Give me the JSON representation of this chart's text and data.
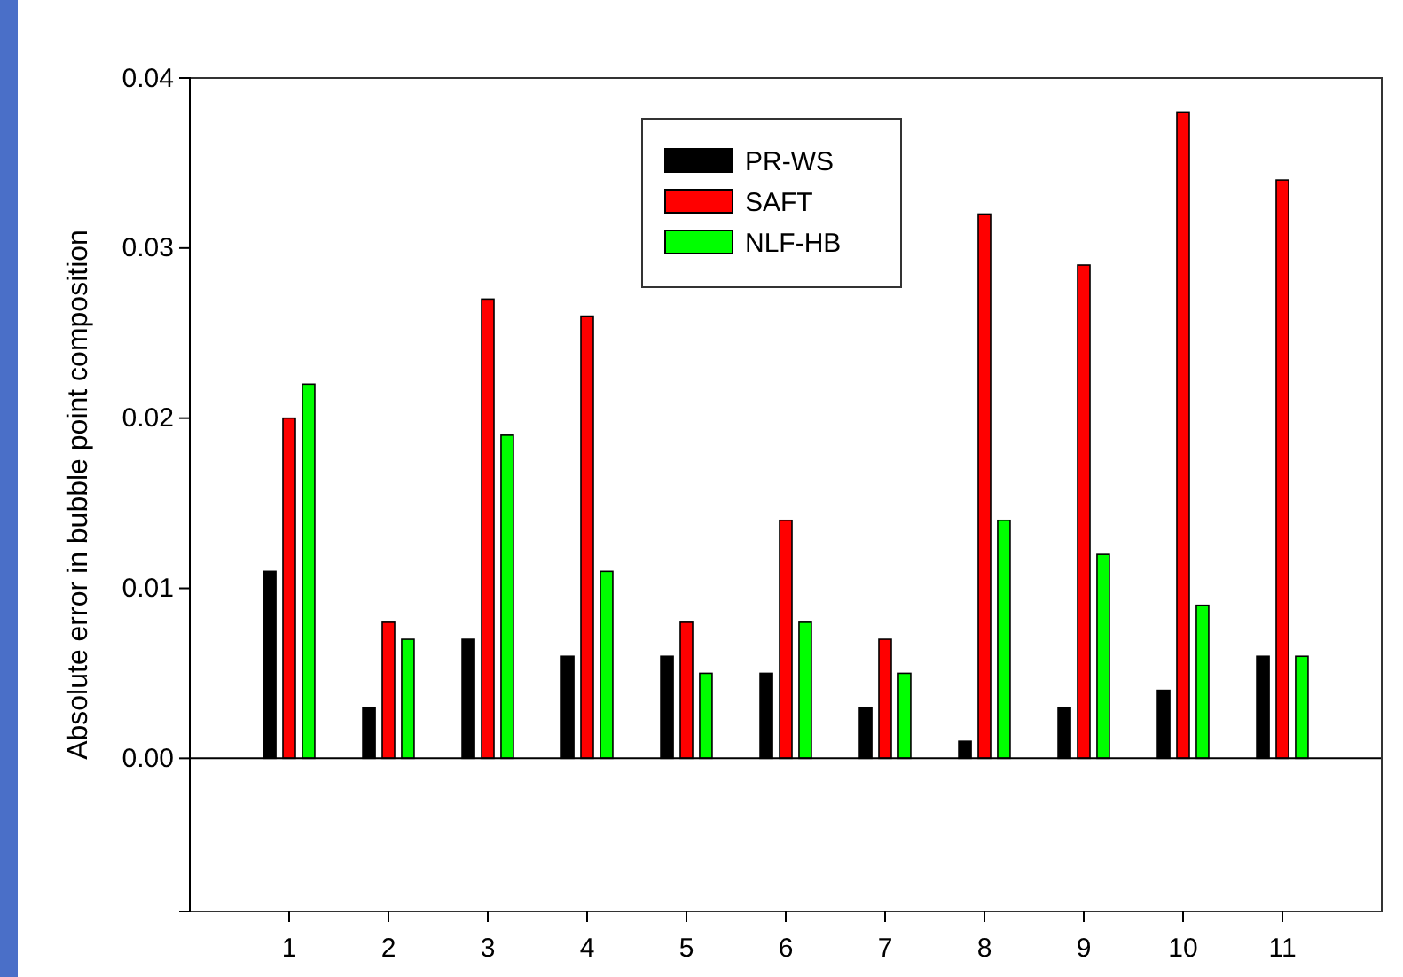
{
  "chart_data": {
    "type": "bar",
    "ylabel": "Absolute error in bubble point composition",
    "categories": [
      "1",
      "2",
      "3",
      "4",
      "5",
      "6",
      "7",
      "8",
      "9",
      "10",
      "11"
    ],
    "series": [
      {
        "name": "PR-WS",
        "color": "#000000",
        "values": [
          0.011,
          0.003,
          0.007,
          0.006,
          0.006,
          0.005,
          0.003,
          0.001,
          0.003,
          0.004,
          0.006
        ]
      },
      {
        "name": "SAFT",
        "color": "#ff0000",
        "values": [
          0.02,
          0.008,
          0.027,
          0.026,
          0.008,
          0.014,
          0.007,
          0.032,
          0.029,
          0.038,
          0.034
        ]
      },
      {
        "name": "NLF-HB",
        "color": "#00ff00",
        "values": [
          0.022,
          0.007,
          0.019,
          0.011,
          0.005,
          0.008,
          0.005,
          0.014,
          0.012,
          0.009,
          0.006
        ]
      }
    ],
    "ylim": [
      -0.009,
      0.04
    ],
    "yticks": [
      {
        "value": 0,
        "label": "0.00"
      },
      {
        "value": 0.01,
        "label": "0.01"
      },
      {
        "value": 0.02,
        "label": "0.02"
      },
      {
        "value": 0.03,
        "label": "0.03"
      },
      {
        "value": 0.04,
        "label": "0.04"
      }
    ],
    "legend": "top",
    "ref_lines": [
      {
        "axis": "y",
        "value": 0,
        "color": "#000000"
      }
    ]
  }
}
